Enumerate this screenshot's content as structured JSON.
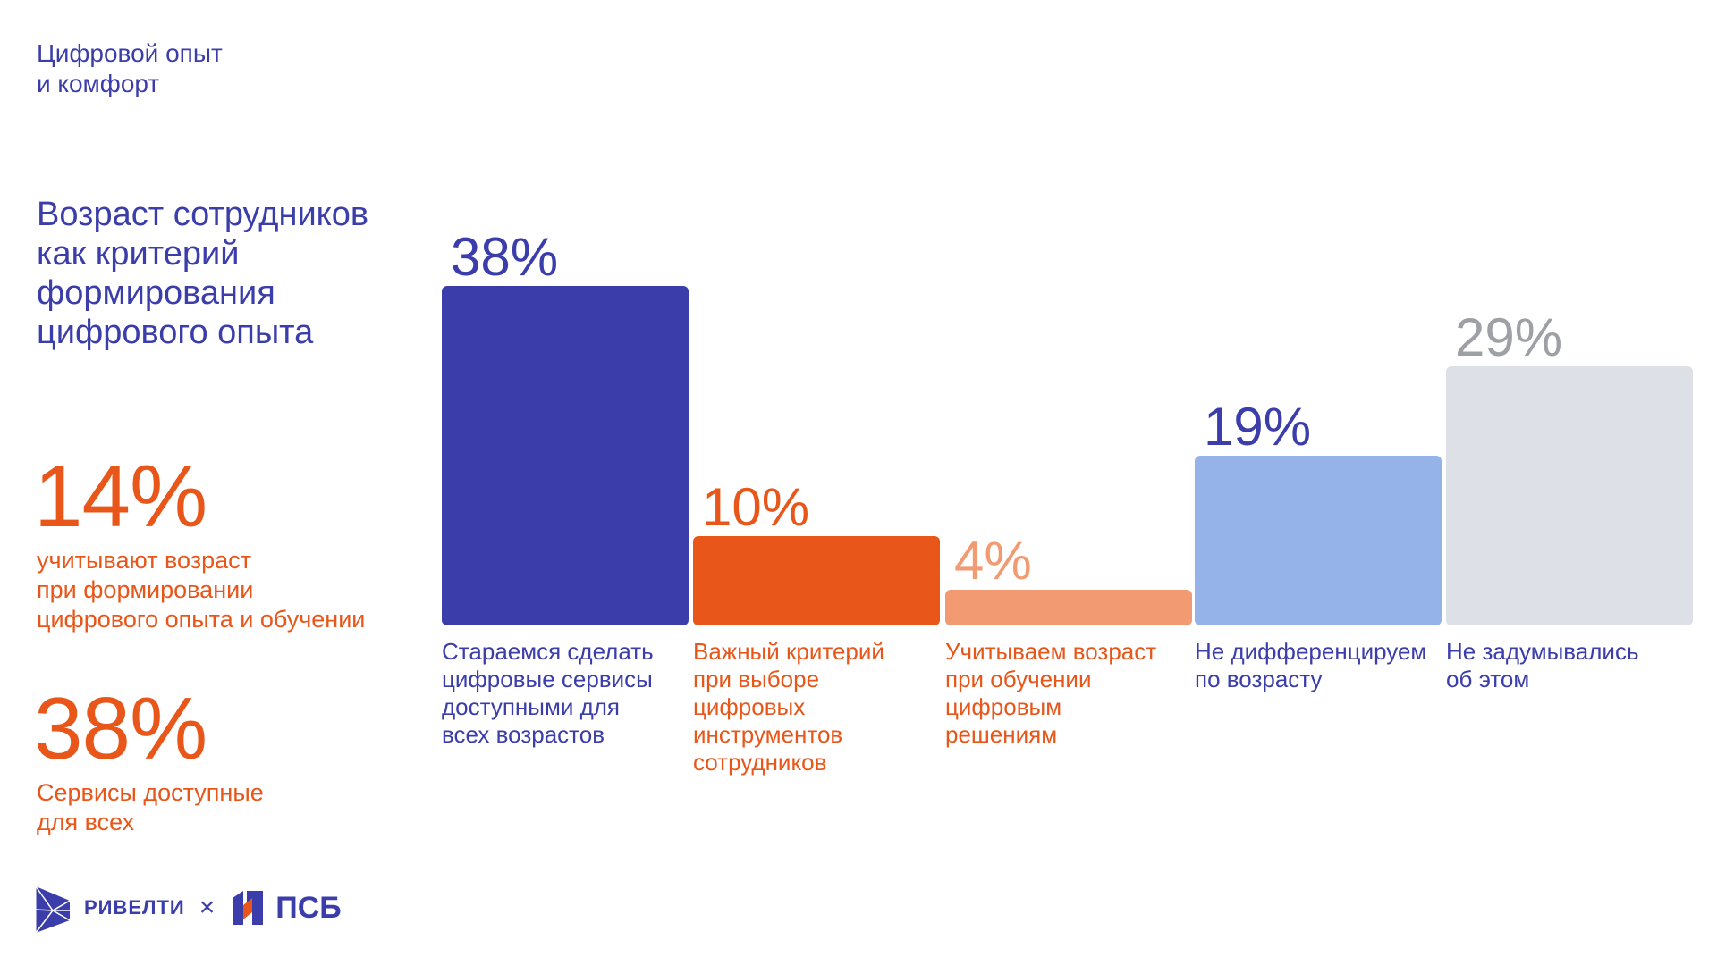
{
  "header": {
    "section_tag": [
      "Цифровой опыт",
      "и комфорт"
    ]
  },
  "title": [
    "Возраст сотрудников",
    "как критерий",
    "формирования",
    "цифрового опыта"
  ],
  "kpis": [
    {
      "value": "14%",
      "text": [
        "учитывают возраст",
        "при формировании",
        "цифрового опыта и обучении"
      ]
    },
    {
      "value": "38%",
      "text": [
        "Сервисы доступные",
        "для всех"
      ]
    }
  ],
  "chart_data": {
    "type": "bar",
    "title": "",
    "xlabel": "",
    "ylabel": "",
    "ylim": [
      0,
      38
    ],
    "grid": false,
    "categories": [
      [
        "Стараемся сделать",
        "цифровые сервисы",
        "доступными для",
        "всех возрастов"
      ],
      [
        "Важный критерий",
        "при выборе",
        "цифровых",
        "инструментов",
        "сотрудников"
      ],
      [
        "Учитываем возраст",
        "при обучении",
        "цифровым",
        "решениям"
      ],
      [
        "Не дифференцируем",
        "по возрасту"
      ],
      [
        "Не задумывались",
        "об этом"
      ]
    ],
    "values": [
      38,
      10,
      4,
      19,
      29
    ],
    "data_labels": [
      "38%",
      "10%",
      "4%",
      "19%",
      "29%"
    ],
    "bar_colors": [
      "#3b3dab",
      "#e8561a",
      "#f29a72",
      "#95b3e8",
      "#dde0e6"
    ],
    "value_label_colors": [
      "#3b3dab",
      "#e8561a",
      "#f29a72",
      "#3b3dab",
      "#9ea0a6"
    ],
    "category_label_colors": [
      "#3b3dab",
      "#e8561a",
      "#e8561a",
      "#3b3dab",
      "#3b3dab"
    ]
  },
  "logos": {
    "brand1": "РИВЕЛТИ",
    "separator": "×",
    "brand2": "ПСБ",
    "brand1_icon": "rivelti-logo-icon",
    "brand2_icon": "psb-logo-icon"
  }
}
